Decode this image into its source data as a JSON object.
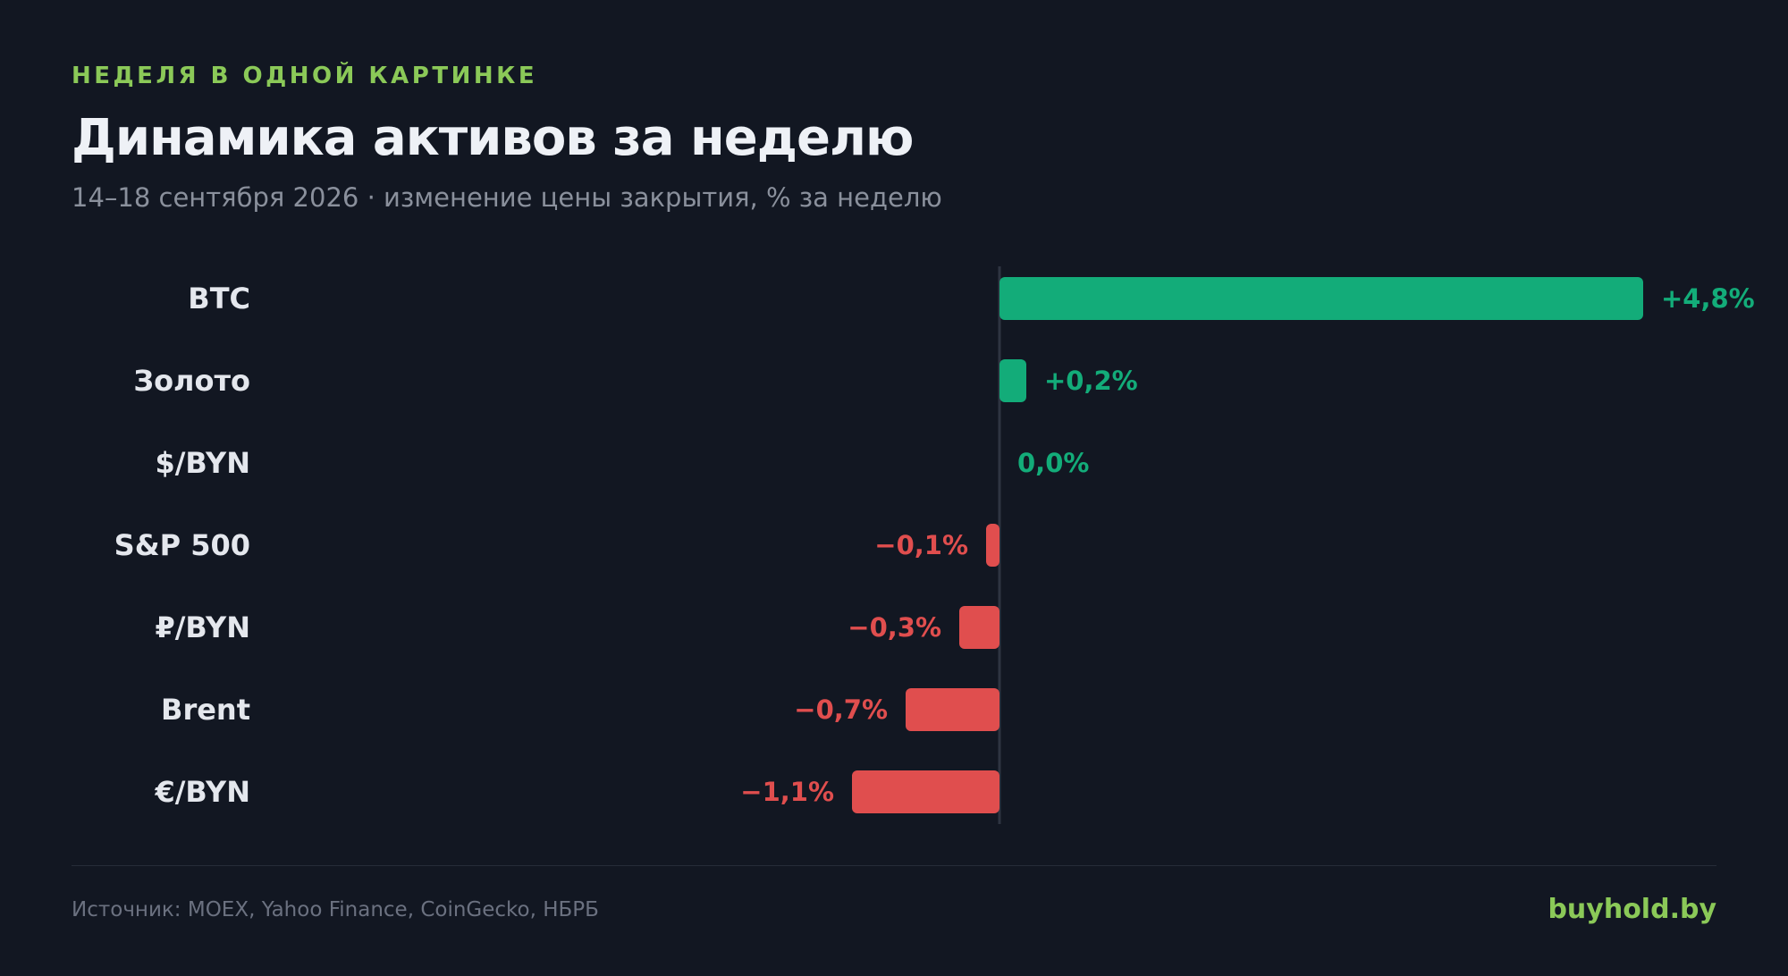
{
  "header": {
    "kicker": "НЕДЕЛЯ В ОДНОЙ КАРТИНКЕ",
    "title": "Динамика активов за неделю",
    "subtitle": "14–18 сентября 2026 · изменение цены закрытия, % за неделю"
  },
  "chart_data": {
    "type": "bar",
    "orientation": "horizontal",
    "categories": [
      "BTC",
      "Золото",
      "$/BYN",
      "S&P 500",
      "₽/BYN",
      "Brent",
      "€/BYN"
    ],
    "values": [
      4.8,
      0.2,
      0.0,
      -0.1,
      -0.3,
      -0.7,
      -1.1
    ],
    "value_labels": [
      "+4,8%",
      "+0,2%",
      "0,0%",
      "−0,1%",
      "−0,3%",
      "−0,7%",
      "−1,1%"
    ],
    "unit": "%",
    "title": "Динамика активов за неделю",
    "grid": false,
    "legend": "none",
    "colors": {
      "positive": "#13ac79",
      "negative": "#e04e4e",
      "zero_axis": "#2e3441",
      "category_label": "#e4e7ed"
    }
  },
  "footer": {
    "source": "Источник: MOEX, Yahoo Finance, CoinGecko, НБРБ",
    "brand": "buyhold.by"
  }
}
